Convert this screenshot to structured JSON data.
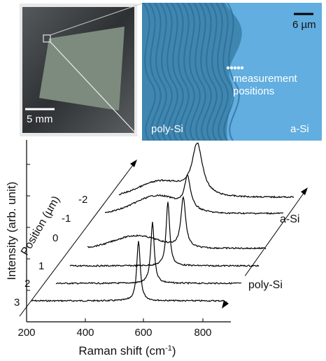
{
  "photos": {
    "left": {
      "scale_label": "5 mm"
    },
    "right": {
      "scale_label": "6 µm",
      "annotation": [
        "measurement",
        "positions"
      ],
      "region_left": "poly-Si",
      "region_right": "a-Si"
    }
  },
  "plot": {
    "x_axis": {
      "label": "Raman shift (cm",
      "label_sup": "-1",
      "label_end": ")",
      "ticks": [
        "200",
        "400",
        "600",
        "800"
      ]
    },
    "y_axis": {
      "label": "Intensity (arb. unit)"
    },
    "position_axis": {
      "label": "Position (µm)",
      "ticks": [
        "3",
        "2",
        "1",
        "0",
        "-1",
        "-2"
      ]
    },
    "side_labels": {
      "top": "a-Si",
      "bottom": "poly-Si"
    }
  }
}
